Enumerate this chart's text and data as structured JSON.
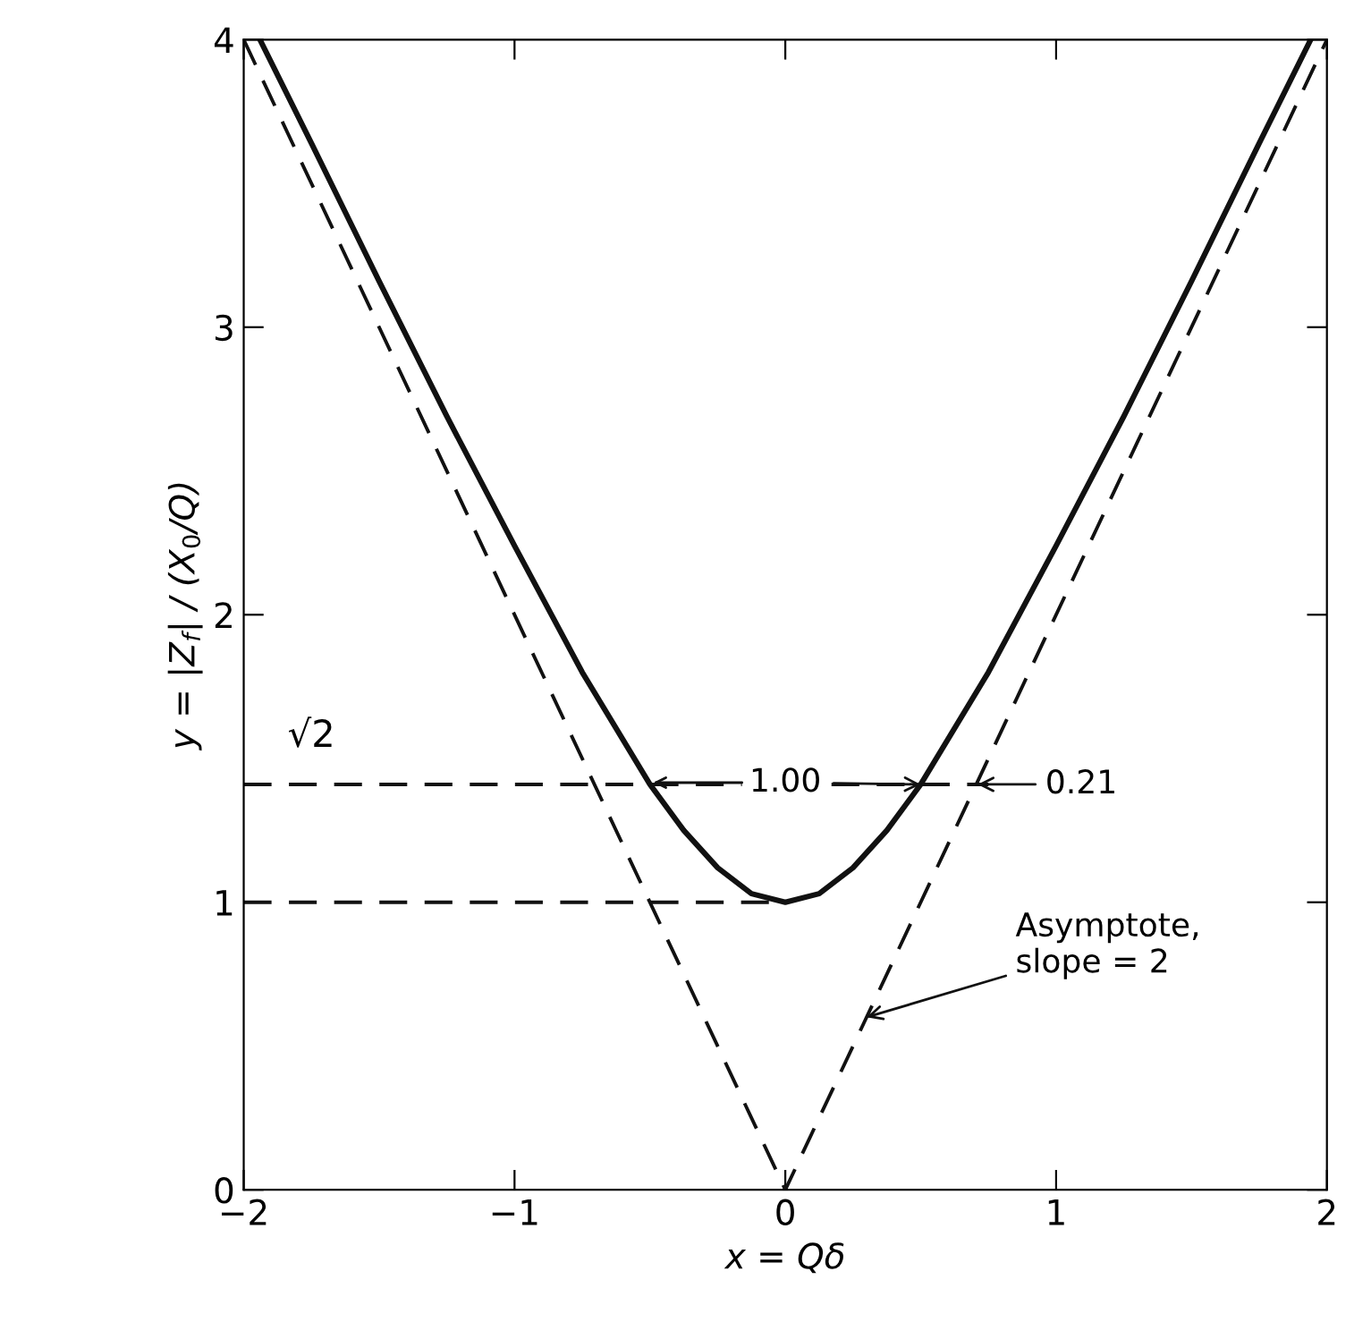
{
  "chart_data": {
    "type": "line",
    "xlabel": "x = Qδ",
    "ylabel": "y = |Z$_{f}$| / (X$_{0}$/Q)",
    "series": [
      {
        "color": "#111111",
        "line_style": "solid",
        "x": [
          -1.94,
          -1.75,
          -1.5,
          -1.25,
          -1,
          -0.75,
          -0.5,
          -0.375,
          -0.25,
          -0.125,
          0,
          0.125,
          0.25,
          0.375,
          0.5,
          0.75,
          1,
          1.25,
          1.5,
          1.75,
          1.94
        ],
        "values": [
          4,
          3.64,
          3.16,
          2.69,
          2.24,
          1.8,
          1.41,
          1.25,
          1.12,
          1.03,
          1,
          1.03,
          1.12,
          1.25,
          1.41,
          1.8,
          2.24,
          2.69,
          3.16,
          3.64,
          4
        ]
      },
      {
        "color": "#111111",
        "line_style": "dashed",
        "x": [
          -2,
          0,
          2
        ],
        "values": [
          4,
          0,
          4
        ]
      },
      {
        "color": "#111111",
        "line_style": "dashed",
        "x": [
          -2,
          0
        ],
        "values": [
          1,
          1
        ]
      },
      {
        "color": "#111111",
        "line_style": "dashed",
        "x": [
          -2,
          0.75
        ],
        "values": [
          1.41,
          1.41
        ]
      }
    ],
    "annotations": [
      {
        "text": "√2",
        "x": -1.75,
        "y": 1.41
      },
      {
        "text": "1.00",
        "x": 0.5,
        "y": 1.41
      },
      {
        "text": "0.21",
        "x": 0.71,
        "y": 1.41
      },
      {
        "text": "Asymptote,\nslope = 2",
        "x": 0.3,
        "y": 0.6
      }
    ],
    "xlim": [
      -2,
      2
    ],
    "ylim": [
      0,
      4
    ],
    "xticks": [
      {
        "value": -2,
        "label": "−2"
      },
      {
        "value": -1,
        "label": "−1"
      },
      0,
      1,
      2
    ],
    "yticks": [
      0,
      1,
      2,
      3,
      4
    ],
    "grid": false,
    "legend": false
  }
}
